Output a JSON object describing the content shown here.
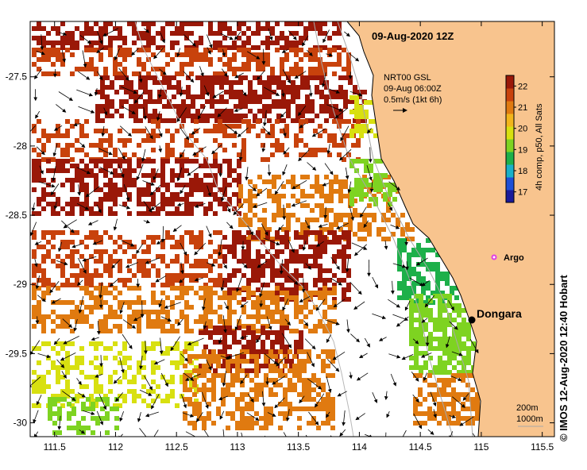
{
  "map": {
    "title": "09-Aug-2020 12Z",
    "current_info": [
      "NRT00 GSL",
      "09-Aug 06:00Z",
      "0.5m/s (1kt 6h)"
    ],
    "colorbar": {
      "label": "4h comp, p50, All Sats",
      "ticks": [
        "22",
        "21",
        "20",
        "19",
        "18",
        "17"
      ],
      "range": [
        16.5,
        22.5
      ],
      "colors": [
        "#1a1a9a",
        "#1e4fd6",
        "#19b0c8",
        "#1db04a",
        "#7ed321",
        "#d8e010",
        "#f2b51b",
        "#e07a10",
        "#c8420c",
        "#9a1808"
      ]
    },
    "x_ticks": [
      "111.5",
      "112",
      "112.5",
      "113",
      "113.5",
      "114",
      "114.5",
      "115",
      "115.5"
    ],
    "y_ticks": [
      "-27.5",
      "-28",
      "-28.5",
      "-29",
      "-29.5",
      "-30"
    ],
    "lon_range": [
      111.3,
      115.6
    ],
    "lat_range": [
      -30.1,
      -27.1
    ],
    "places": {
      "dongara": {
        "name": "Dongara",
        "lon": 114.93,
        "lat": -29.25
      },
      "argo": {
        "name": "Argo",
        "lon": 115.13,
        "lat": -28.84
      }
    },
    "depth_legend": [
      "200m",
      "1000m"
    ],
    "colors": {
      "land": "#f8c48e",
      "no_data": "#ffffff",
      "argo_marker": "#e040e0"
    }
  },
  "credit": "© IMOS 12-Aug-2020 12:40 Hobart"
}
